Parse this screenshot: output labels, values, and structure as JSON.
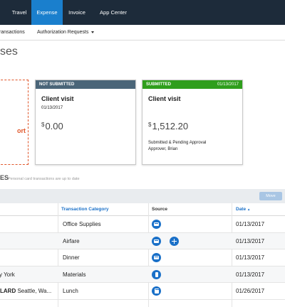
{
  "nav": {
    "items": [
      {
        "label": "Travel",
        "active": false
      },
      {
        "label": "Expense",
        "active": true
      },
      {
        "label": "Invoice",
        "active": false
      },
      {
        "label": "App Center",
        "active": false
      }
    ]
  },
  "subnav": {
    "items": [
      {
        "label": "ransactions"
      },
      {
        "label": "Authorization Requests"
      }
    ]
  },
  "page": {
    "title": "ses"
  },
  "new_report": {
    "label": "ort"
  },
  "cards": [
    {
      "status": "NOT SUBMITTED",
      "status_date": "",
      "title": "Client visit",
      "date": "01/13/2017",
      "currency": "$",
      "amount": "0.00",
      "status_line1": "",
      "status_line2": ""
    },
    {
      "status": "SUBMITTED",
      "status_date": "01/13/2017",
      "title": "Client visit",
      "date": "",
      "currency": "$",
      "amount": "1,512.20",
      "status_line1": "Submitted & Pending Approval",
      "status_line2": "Approver, Brian"
    }
  ],
  "section": {
    "title": "ES",
    "note": "Personal card transactions are up to date"
  },
  "toolbar": {
    "move_label": "Move"
  },
  "table": {
    "columns": {
      "category": "Transaction Category",
      "source": "Source",
      "date": "Date",
      "sort_indicator": "▲"
    },
    "rows": [
      {
        "vendor_bold": "",
        "vendor": "",
        "category": "Office Supplies",
        "date": "01/13/2017",
        "source": "card",
        "add": false
      },
      {
        "vendor_bold": "",
        "vendor": "",
        "category": "Airfare",
        "date": "01/13/2017",
        "source": "card",
        "add": true
      },
      {
        "vendor_bold": "",
        "vendor": "",
        "category": "Dinner",
        "date": "01/13/2017",
        "source": "card",
        "add": false
      },
      {
        "vendor_bold": "",
        "vendor": "y York",
        "category": "Materials",
        "date": "01/13/2017",
        "source": "phone",
        "add": false
      },
      {
        "vendor_bold": "LARD",
        "vendor": " Seattle, Wa...",
        "category": "Lunch",
        "date": "01/26/2017",
        "source": "receipt",
        "add": false
      }
    ]
  },
  "colors": {
    "nav_bg": "#1d2b3a",
    "nav_active": "#1a7fcd",
    "not_submitted": "#4a6578",
    "submitted": "#2f9e1c",
    "accent_orange": "#e0572b",
    "link_blue": "#1a70c8"
  },
  "icons": {
    "card": "credit-card-icon",
    "phone": "mobile-phone-icon",
    "receipt": "receipt-icon",
    "add": "plus-circle-icon"
  }
}
